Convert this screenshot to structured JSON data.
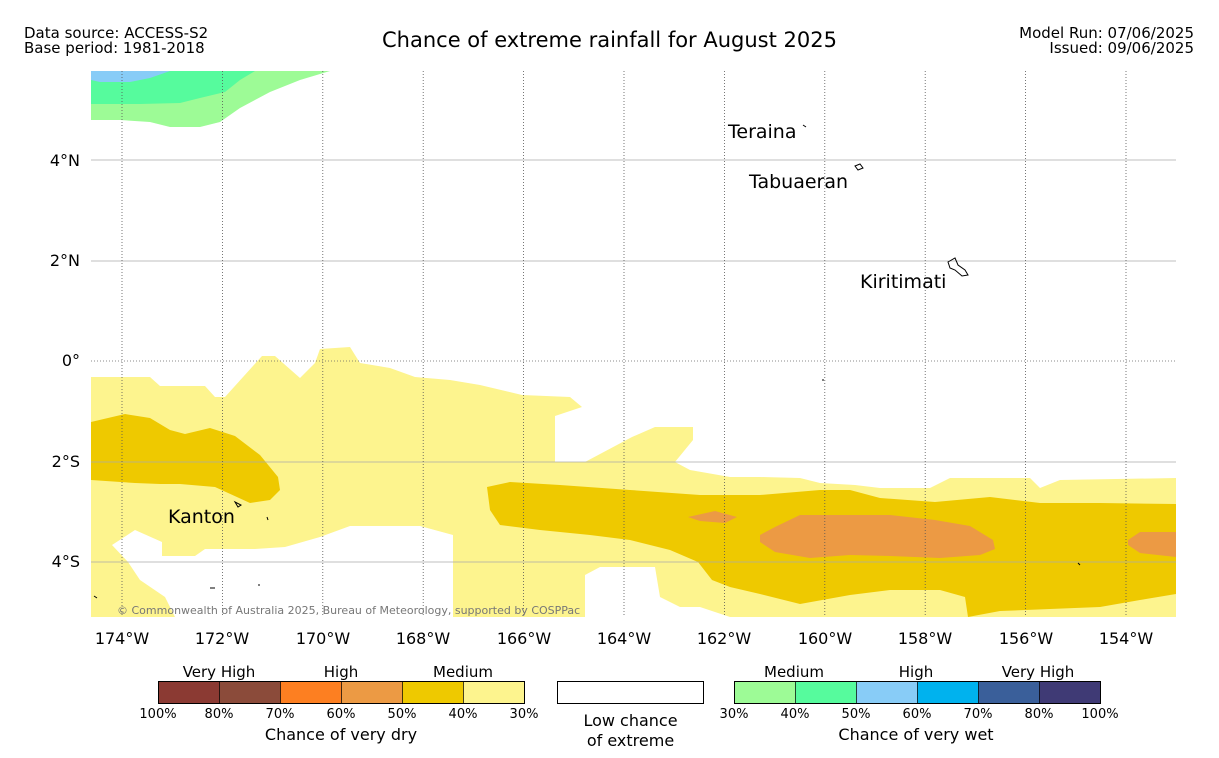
{
  "header": {
    "data_source": "Data source: ACCESS-S2",
    "base_period": "Base period: 1981-2018",
    "title": "Chance of extreme rainfall for August 2025",
    "model_run": "Model Run: 07/06/2025",
    "issued": "Issued: 09/06/2025"
  },
  "map": {
    "lat_ticks": [
      "4°N",
      "2°N",
      "0°",
      "2°S",
      "4°S"
    ],
    "lon_ticks": [
      "174°W",
      "172°W",
      "170°W",
      "168°W",
      "166°W",
      "164°W",
      "162°W",
      "160°W",
      "158°W",
      "156°W",
      "154°W"
    ],
    "places": [
      "Teraina",
      "Tabuaeran",
      "Kiritimati",
      "Kanton"
    ],
    "credit": "© Commonwealth of Australia 2025, Bureau of Meteorology, supported by COSPPac",
    "colors": {
      "dry_30_40": "#fdf48e",
      "dry_40_50": "#eec900",
      "dry_50_60": "#ec9a44",
      "wet_30_40": "#9dfb96",
      "wet_40_50": "#56fb9d",
      "wet_50_60": "#88ccf7"
    }
  },
  "legend": {
    "dry": {
      "group_labels": [
        "Very High",
        "High",
        "Medium"
      ],
      "ticks": [
        "100%",
        "80%",
        "70%",
        "60%",
        "50%",
        "40%",
        "30%"
      ],
      "colors": [
        "#8b3a33",
        "#8b4b3a",
        "#fd7f21",
        "#ec9a44",
        "#eec900",
        "#fdf48e"
      ],
      "title": "Chance of very dry"
    },
    "low": {
      "line1": "Low chance",
      "line2": "of extreme"
    },
    "wet": {
      "group_labels": [
        "Medium",
        "High",
        "Very High"
      ],
      "ticks": [
        "30%",
        "40%",
        "50%",
        "60%",
        "70%",
        "80%",
        "100%"
      ],
      "colors": [
        "#9dfb96",
        "#56fb9d",
        "#88ccf7",
        "#00b2ee",
        "#3a5f9a",
        "#3f3a75"
      ],
      "title": "Chance of very wet"
    }
  }
}
